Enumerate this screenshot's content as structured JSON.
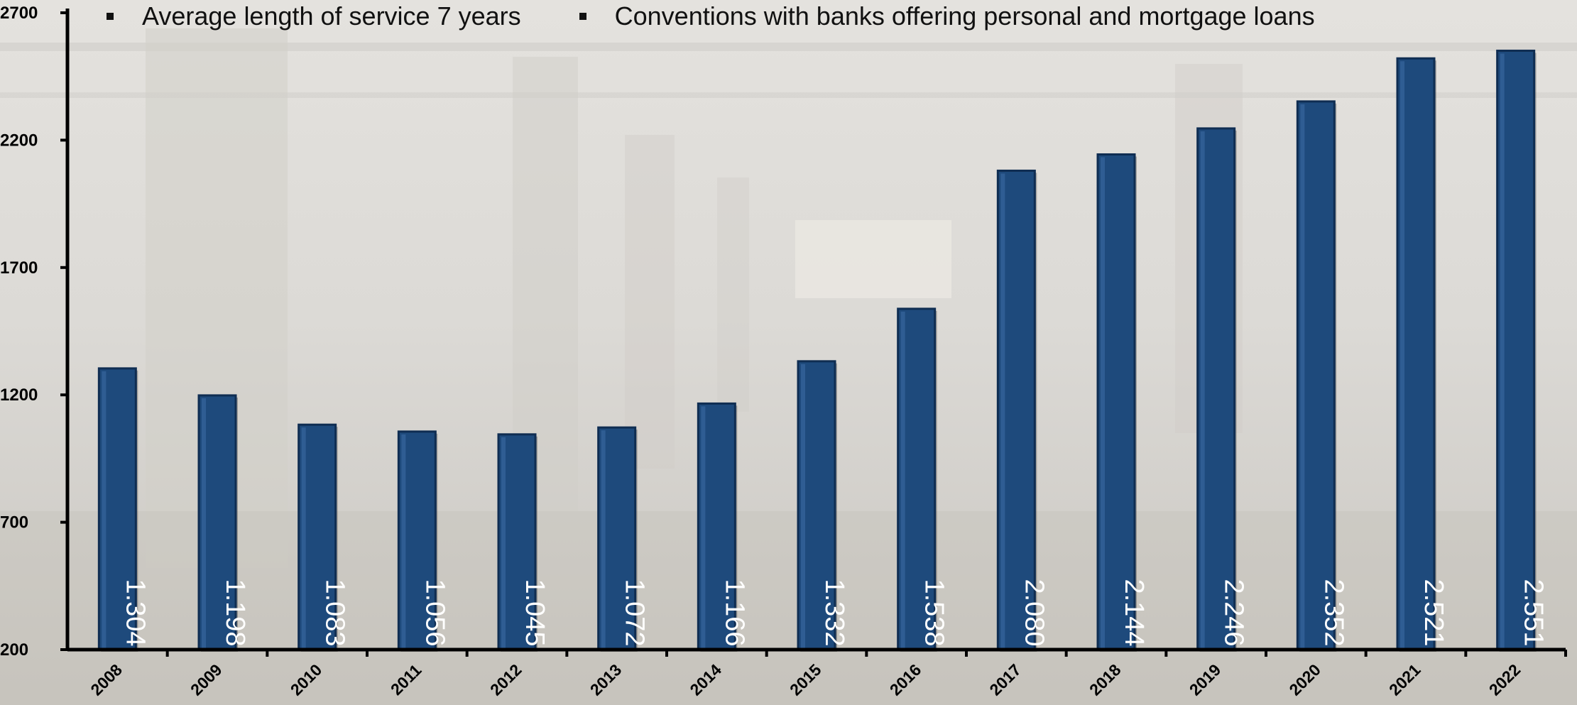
{
  "legend": {
    "items": [
      "Average length of service 7 years",
      "Conventions with banks offering personal and mortgage loans"
    ]
  },
  "colors": {
    "bar": "#1e4a7c",
    "bar_edge": "#0f2d52",
    "axis": "#000000",
    "label": "#ffffff"
  },
  "chart_data": {
    "type": "bar",
    "categories": [
      "2008",
      "2009",
      "2010",
      "2011",
      "2012",
      "2013",
      "2014",
      "2015",
      "2016",
      "2017",
      "2018",
      "2019",
      "2020",
      "2021",
      "2022"
    ],
    "values": [
      1304,
      1198,
      1083,
      1056,
      1045,
      1072,
      1166,
      1332,
      1538,
      2080,
      2144,
      2246,
      2352,
      2521,
      2551
    ],
    "data_labels": [
      "1.304",
      "1.198",
      "1.083",
      "1.056",
      "1.045",
      "1.072",
      "1.166",
      "1.332",
      "1.538",
      "2.080",
      "2.144",
      "2.246",
      "2.352",
      "2.521",
      "2.551"
    ],
    "ylim": [
      200,
      2700
    ],
    "yticks": [
      200,
      700,
      1200,
      1700,
      2200,
      2700
    ],
    "title": "",
    "xlabel": "",
    "ylabel": "",
    "grid": false,
    "legend_position": "top"
  }
}
